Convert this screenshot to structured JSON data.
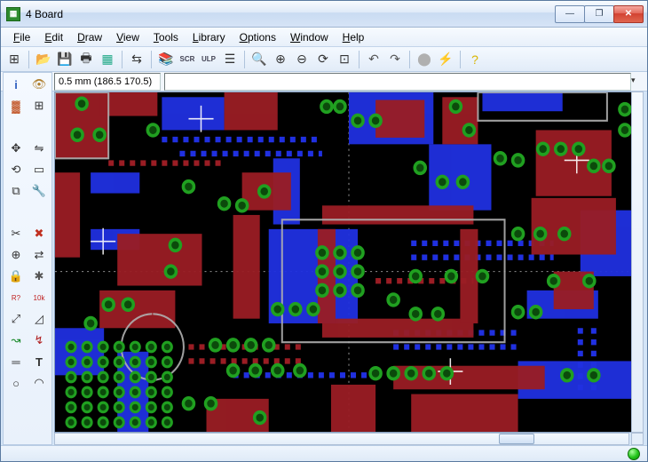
{
  "window": {
    "title": "4 Board",
    "icon_glyph": "▦",
    "buttons": {
      "min": "—",
      "max": "❐",
      "close": "✕"
    }
  },
  "menu": {
    "items": [
      {
        "key": "F",
        "rest": "ile"
      },
      {
        "key": "E",
        "rest": "dit"
      },
      {
        "key": "D",
        "rest": "raw"
      },
      {
        "key": "V",
        "rest": "iew"
      },
      {
        "key": "T",
        "rest": "ools"
      },
      {
        "key": "L",
        "rest": "ibrary"
      },
      {
        "key": "O",
        "rest": "ptions"
      },
      {
        "key": "W",
        "rest": "indow"
      },
      {
        "key": "H",
        "rest": "elp"
      }
    ]
  },
  "toolbar": {
    "items": [
      {
        "name": "grid-icon",
        "glyph": "⊞",
        "color": "#333"
      },
      {
        "sep": true
      },
      {
        "name": "open-icon",
        "glyph": "📂",
        "color": "#c9a227"
      },
      {
        "name": "save-icon",
        "glyph": "💾",
        "color": "#2b5fa8"
      },
      {
        "name": "print-icon",
        "glyph": "🖶",
        "color": "#333"
      },
      {
        "name": "cam-export-icon",
        "glyph": "▦",
        "color": "#2a8"
      },
      {
        "sep": true
      },
      {
        "name": "switch-board-icon",
        "glyph": "⇆",
        "color": "#333"
      },
      {
        "sep": true
      },
      {
        "name": "layers-icon",
        "glyph": "📚",
        "color": "#c98d2a"
      },
      {
        "name": "script-icon",
        "glyph": "SCR",
        "color": "#445",
        "small": true
      },
      {
        "name": "ulp-icon",
        "glyph": "ULP",
        "color": "#445",
        "small": true
      },
      {
        "name": "list-icon",
        "glyph": "☰",
        "color": "#333"
      },
      {
        "sep": true
      },
      {
        "name": "zoom-fit-icon",
        "glyph": "🔍",
        "color": "#333"
      },
      {
        "name": "zoom-in-icon",
        "glyph": "⊕",
        "color": "#333"
      },
      {
        "name": "zoom-out-icon",
        "glyph": "⊖",
        "color": "#333"
      },
      {
        "name": "zoom-redraw-icon",
        "glyph": "⟳",
        "color": "#333"
      },
      {
        "name": "zoom-select-icon",
        "glyph": "⊡",
        "color": "#333"
      },
      {
        "sep": true
      },
      {
        "name": "undo-icon",
        "glyph": "↶",
        "color": "#555"
      },
      {
        "name": "redo-icon",
        "glyph": "↷",
        "color": "#555"
      },
      {
        "sep": true
      },
      {
        "name": "stop-icon",
        "glyph": "⬤",
        "color": "#b0b0b0"
      },
      {
        "name": "go-icon",
        "glyph": "⚡",
        "color": "#d9b500"
      },
      {
        "sep": true
      },
      {
        "name": "help-icon",
        "glyph": "?",
        "color": "#d9b500"
      }
    ]
  },
  "coord": {
    "text": "0.5 mm (186.5 170.5)",
    "dropdown_glyph": "▾"
  },
  "command": {
    "value": ""
  },
  "palette": {
    "tools": [
      {
        "name": "info-icon",
        "glyph": "i",
        "color": "#3060c0",
        "bold": true
      },
      {
        "name": "show-icon",
        "glyph": "👁",
        "color": "#b08030"
      },
      {
        "name": "display-icon",
        "glyph": "▓",
        "color": "#c05020"
      },
      {
        "name": "layers-icon",
        "glyph": "⊞",
        "color": "#333"
      },
      {
        "name": "blank1",
        "glyph": "",
        "color": "#333"
      },
      {
        "name": "blank2",
        "glyph": "",
        "color": "#333"
      },
      {
        "name": "move-icon",
        "glyph": "✥",
        "color": "#333"
      },
      {
        "name": "mirror-icon",
        "glyph": "⇋",
        "color": "#333"
      },
      {
        "name": "rotate-icon",
        "glyph": "⟲",
        "color": "#333"
      },
      {
        "name": "group-icon",
        "glyph": "▭",
        "color": "#333"
      },
      {
        "name": "copy-icon",
        "glyph": "⧉",
        "color": "#333"
      },
      {
        "name": "change-icon",
        "glyph": "🔧",
        "color": "#333"
      },
      {
        "name": "blank3",
        "glyph": "",
        "color": "#333"
      },
      {
        "name": "blank4",
        "glyph": "",
        "color": "#333"
      },
      {
        "name": "cut-icon",
        "glyph": "✂",
        "color": "#333"
      },
      {
        "name": "delete-icon",
        "glyph": "✖",
        "color": "#c03020"
      },
      {
        "name": "add-icon",
        "glyph": "⊕",
        "color": "#333"
      },
      {
        "name": "replace-icon",
        "glyph": "⇄",
        "color": "#333"
      },
      {
        "name": "lock-icon",
        "glyph": "🔒",
        "color": "#555"
      },
      {
        "name": "smash-icon",
        "glyph": "✱",
        "color": "#555"
      },
      {
        "name": "name-icon",
        "glyph": "R?",
        "color": "#c02020",
        "small": true
      },
      {
        "name": "value-icon",
        "glyph": "10k",
        "color": "#c02020",
        "small": true
      },
      {
        "name": "split-icon",
        "glyph": "⤢",
        "color": "#333"
      },
      {
        "name": "miter-icon",
        "glyph": "◿",
        "color": "#333"
      },
      {
        "name": "route-icon",
        "glyph": "↝",
        "color": "#1a8a2a"
      },
      {
        "name": "ripup-icon",
        "glyph": "↯",
        "color": "#b02020"
      },
      {
        "name": "wire-icon",
        "glyph": "═",
        "color": "#333"
      },
      {
        "name": "text-icon",
        "glyph": "T",
        "color": "#333",
        "bold": true
      },
      {
        "name": "circle-icon",
        "glyph": "○",
        "color": "#333"
      },
      {
        "name": "arc-icon",
        "glyph": "◠",
        "color": "#333"
      }
    ]
  },
  "status": {
    "led_color": "#22c41a"
  },
  "board": {
    "background_color": "#000000",
    "colors": {
      "top": "#b02028",
      "bottom": "#2030e0",
      "via_ring": "#20a020",
      "via_fill": "#0b4a0b",
      "silk": "#b0b0b0",
      "origin": "#ffffff"
    }
  }
}
